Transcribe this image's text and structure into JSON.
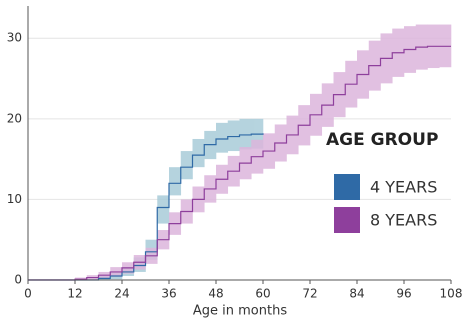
{
  "chart_data": {
    "type": "line",
    "step": true,
    "x_label": "Age in months",
    "legend_title": "AGE GROUP",
    "legend": "right",
    "grid": true,
    "xlim": [
      0,
      108
    ],
    "xticks": [
      0,
      12,
      24,
      36,
      48,
      60,
      72,
      84,
      96,
      108
    ],
    "ylim": [
      0,
      34
    ],
    "yticks": [
      0,
      10,
      20,
      30
    ],
    "x": [
      0,
      3,
      6,
      9,
      12,
      15,
      18,
      21,
      24,
      27,
      30,
      33,
      36,
      39,
      42,
      45,
      48,
      51,
      54,
      57,
      60,
      63,
      66,
      69,
      72,
      75,
      78,
      81,
      84,
      87,
      90,
      93,
      96,
      99,
      102,
      105,
      108
    ],
    "series": [
      {
        "name": "4 YEARS",
        "color": "#2f6aa6",
        "band_color": "#a9ccd9",
        "values": [
          0,
          0,
          0,
          0,
          0,
          0,
          0.2,
          0.5,
          1,
          1.8,
          3.5,
          9,
          12,
          14,
          15.5,
          16.8,
          17.5,
          17.8,
          18,
          18.1,
          18.2,
          null,
          null,
          null,
          null,
          null,
          null,
          null,
          null,
          null,
          null,
          null,
          null,
          null,
          null,
          null,
          null
        ],
        "lower": [
          0,
          0,
          0,
          0,
          0,
          0,
          0,
          0.1,
          0.5,
          1,
          2.5,
          7,
          10.5,
          12.5,
          14,
          15,
          15.8,
          16,
          16.2,
          16.3,
          16.4,
          null,
          null,
          null,
          null,
          null,
          null,
          null,
          null,
          null,
          null,
          null,
          null,
          null,
          null,
          null,
          null
        ],
        "upper": [
          0,
          0,
          0,
          0,
          0,
          0.1,
          0.5,
          1,
          1.6,
          2.8,
          5,
          10.5,
          14,
          16,
          17.5,
          18.5,
          19.5,
          19.8,
          20,
          20,
          20,
          null,
          null,
          null,
          null,
          null,
          null,
          null,
          null,
          null,
          null,
          null,
          null,
          null,
          null,
          null,
          null
        ]
      },
      {
        "name": "8 YEARS",
        "color": "#8e3f9c",
        "band_color": "#dcb6dc",
        "values": [
          0,
          0,
          0,
          0,
          0.1,
          0.3,
          0.6,
          1,
          1.5,
          2.2,
          3,
          5,
          7,
          8.5,
          10,
          11.3,
          12.5,
          13.5,
          14.5,
          15.3,
          16,
          17,
          18,
          19.2,
          20.5,
          21.7,
          23,
          24.3,
          25.5,
          26.6,
          27.5,
          28.2,
          28.6,
          28.9,
          29,
          29,
          29
        ],
        "lower": [
          0,
          0,
          0,
          0,
          0,
          0,
          0.2,
          0.4,
          0.8,
          1.3,
          2,
          3.8,
          5.6,
          7,
          8.4,
          9.6,
          10.7,
          11.6,
          12.5,
          13.2,
          13.8,
          14.7,
          15.6,
          16.7,
          17.9,
          19,
          20.2,
          21.4,
          22.5,
          23.5,
          24.4,
          25.2,
          25.7,
          26.1,
          26.3,
          26.4,
          26.5
        ],
        "upper": [
          0.1,
          0.1,
          0.1,
          0.1,
          0.3,
          0.6,
          1,
          1.6,
          2.2,
          3.1,
          4,
          6.2,
          8.4,
          10,
          11.6,
          13,
          14.3,
          15.4,
          16.5,
          17.4,
          18.2,
          19.3,
          20.4,
          21.7,
          23.1,
          24.4,
          25.8,
          27.2,
          28.5,
          29.7,
          30.6,
          31.2,
          31.5,
          31.7,
          31.7,
          31.7,
          31.7
        ]
      }
    ]
  }
}
